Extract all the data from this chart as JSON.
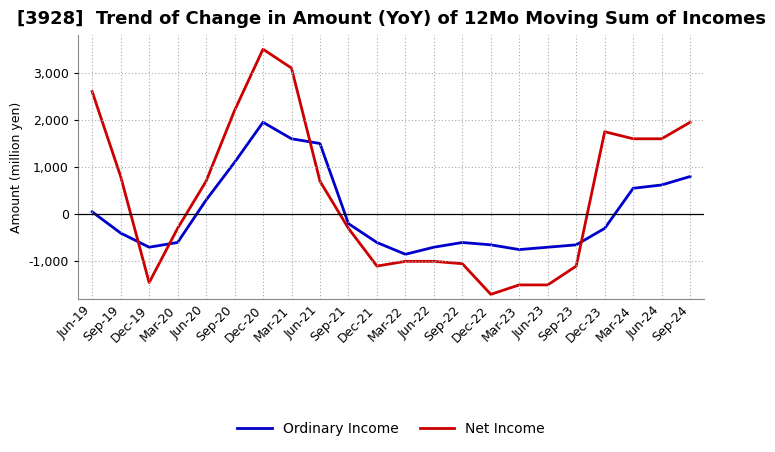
{
  "title": "[3928]  Trend of Change in Amount (YoY) of 12Mo Moving Sum of Incomes",
  "ylabel": "Amount (million yen)",
  "background_color": "#ffffff",
  "plot_bg_color": "#ffffff",
  "grid_color": "#aaaaaa",
  "x_labels": [
    "Jun-19",
    "Sep-19",
    "Dec-19",
    "Mar-20",
    "Jun-20",
    "Sep-20",
    "Dec-20",
    "Mar-21",
    "Jun-21",
    "Sep-21",
    "Dec-21",
    "Mar-22",
    "Jun-22",
    "Sep-22",
    "Dec-22",
    "Mar-23",
    "Jun-23",
    "Sep-23",
    "Dec-23",
    "Mar-24",
    "Jun-24",
    "Sep-24"
  ],
  "ordinary_income": [
    50,
    -400,
    -700,
    -600,
    300,
    1100,
    1950,
    1600,
    1500,
    -200,
    -600,
    -850,
    -700,
    -600,
    -650,
    -750,
    -700,
    -650,
    -300,
    550,
    620,
    800
  ],
  "net_income": [
    2600,
    800,
    -1450,
    -300,
    700,
    2200,
    3500,
    3100,
    700,
    -300,
    -1100,
    -1000,
    -1000,
    -1050,
    -1700,
    -1500,
    -1500,
    -1100,
    1750,
    1600,
    1600,
    1950
  ],
  "ordinary_income_color": "#0000cc",
  "net_income_color": "#cc0000",
  "ylim": [
    -1800,
    3800
  ],
  "yticks": [
    -1000,
    0,
    1000,
    2000,
    3000
  ],
  "legend_labels": [
    "Ordinary Income",
    "Net Income"
  ],
  "line_width": 2.0,
  "title_fontsize": 13,
  "label_fontsize": 9,
  "tick_fontsize": 9,
  "legend_fontsize": 10
}
